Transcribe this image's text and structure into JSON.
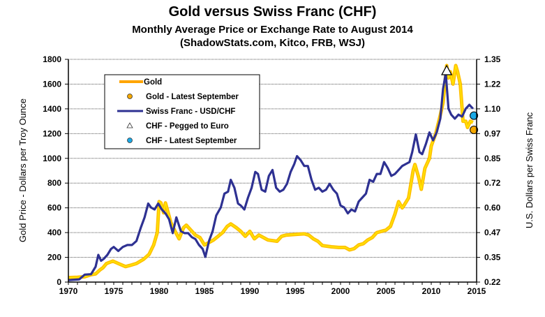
{
  "chart_data": {
    "type": "line",
    "title": "Gold versus Swiss Franc (CHF)",
    "subtitle": "Monthly Average Price or Exchange Rate to August 2014",
    "source": "(ShadowStats.com, Kitco, FRB, WSJ)",
    "xlabel": "",
    "ylabel_left": "Gold Price - Dollars per Troy Ounce",
    "ylabel_right": "U.S. Dollars per Swiss Franc",
    "xlim": [
      1970,
      2015
    ],
    "ylim_left": [
      0,
      1800
    ],
    "ylim_right": [
      0.2222,
      1.35
    ],
    "x_ticks": [
      "1970",
      "1975",
      "1980",
      "1985",
      "1990",
      "1995",
      "2000",
      "2005",
      "2010",
      "2015"
    ],
    "y_ticks_left": [
      "0",
      "200",
      "400",
      "600",
      "800",
      "1000",
      "1200",
      "1400",
      "1600",
      "1800"
    ],
    "y_ticks_right": [
      "0.22",
      "0.35",
      "0.47",
      "0.60",
      "0.72",
      "0.85",
      "0.97",
      "1.10",
      "1.22",
      "1.35"
    ],
    "grid": true,
    "legend": {
      "placement": "top-left",
      "entries": [
        {
          "label": "Gold",
          "kind": "line",
          "color": "#FFA500"
        },
        {
          "label": "Gold - Latest September",
          "kind": "marker",
          "color": "#F5A800"
        },
        {
          "label": "Swiss Franc - USD/CHF",
          "kind": "line",
          "color": "#2E3192"
        },
        {
          "label": "CHF - Pegged to Euro",
          "kind": "triangle",
          "color": "#FFFFFF"
        },
        {
          "label": "CHF - Latest September",
          "kind": "marker",
          "color": "#1BA9E6"
        }
      ]
    },
    "series": [
      {
        "name": "Gold",
        "axis": "left",
        "color": "#FFA500",
        "x": [
          1970,
          1971,
          1971.8,
          1972.5,
          1973,
          1973.5,
          1973.8,
          1974.2,
          1974.9,
          1975.5,
          1976.3,
          1976.8,
          1977.5,
          1978.3,
          1978.9,
          1979.4,
          1979.8,
          1980.0,
          1980.2,
          1980.5,
          1980.7,
          1981.0,
          1981.3,
          1981.7,
          1982.2,
          1982.7,
          1983.0,
          1983.5,
          1984.0,
          1984.5,
          1985.0,
          1985.5,
          1986.0,
          1986.5,
          1987.0,
          1987.5,
          1987.9,
          1988.5,
          1989.0,
          1989.5,
          1990.0,
          1990.5,
          1991.0,
          1992.0,
          1993.0,
          1993.5,
          1994.0,
          1995.0,
          1996.0,
          1996.5,
          1997.0,
          1997.5,
          1998.0,
          1999.0,
          1999.8,
          2000.5,
          2001.0,
          2001.5,
          2002.0,
          2002.5,
          2003.0,
          2003.5,
          2004.0,
          2004.5,
          2005.0,
          2005.5,
          2006.0,
          2006.4,
          2006.8,
          2007.0,
          2007.5,
          2008.0,
          2008.2,
          2008.6,
          2008.9,
          2009.3,
          2009.8,
          2010.0,
          2010.5,
          2011.0,
          2011.3,
          2011.7,
          2011.9,
          2012.1,
          2012.4,
          2012.7,
          2012.9,
          2013.2,
          2013.5,
          2013.8,
          2014.0,
          2014.3,
          2014.6
        ],
        "values": [
          36,
          39,
          43,
          60,
          66,
          100,
          115,
          150,
          170,
          150,
          125,
          135,
          150,
          185,
          225,
          300,
          400,
          650,
          640,
          560,
          640,
          560,
          480,
          420,
          350,
          440,
          460,
          420,
          380,
          360,
          300,
          320,
          340,
          370,
          400,
          450,
          470,
          440,
          410,
          370,
          410,
          350,
          380,
          340,
          330,
          370,
          380,
          385,
          390,
          380,
          350,
          330,
          295,
          285,
          280,
          280,
          260,
          270,
          300,
          310,
          340,
          360,
          400,
          410,
          420,
          450,
          550,
          650,
          600,
          620,
          680,
          900,
          950,
          850,
          750,
          920,
          1000,
          1100,
          1200,
          1350,
          1450,
          1750,
          1650,
          1700,
          1600,
          1750,
          1700,
          1600,
          1300,
          1300,
          1250,
          1300,
          1290
        ]
      },
      {
        "name": "Swiss Franc - USD/CHF",
        "axis": "right",
        "color": "#2E3192",
        "x": [
          1970,
          1971.2,
          1971.8,
          1972.5,
          1973,
          1973.3,
          1973.6,
          1973.9,
          1974.3,
          1974.7,
          1975.0,
          1975.5,
          1976.0,
          1976.5,
          1977.0,
          1977.5,
          1978.0,
          1978.4,
          1978.8,
          1979.1,
          1979.5,
          1979.9,
          1980.3,
          1980.7,
          1981.1,
          1981.5,
          1981.9,
          1982.4,
          1982.8,
          1983.2,
          1983.6,
          1984.0,
          1984.4,
          1984.8,
          1985.1,
          1985.5,
          1985.9,
          1986.3,
          1986.8,
          1987.2,
          1987.6,
          1987.9,
          1988.3,
          1988.7,
          1989.0,
          1989.4,
          1989.8,
          1990.2,
          1990.6,
          1990.9,
          1991.3,
          1991.7,
          1992.1,
          1992.5,
          1992.9,
          1993.3,
          1993.7,
          1994.1,
          1994.5,
          1994.9,
          1995.2,
          1995.6,
          1996.0,
          1996.4,
          1996.8,
          1997.2,
          1997.6,
          1998.0,
          1998.4,
          1998.8,
          1999.2,
          1999.6,
          2000.0,
          2000.4,
          2000.8,
          2001.2,
          2001.6,
          2002.0,
          2002.4,
          2002.8,
          2003.2,
          2003.6,
          2004.0,
          2004.4,
          2004.8,
          2005.2,
          2005.6,
          2006.0,
          2006.4,
          2006.8,
          2007.2,
          2007.6,
          2007.9,
          2008.3,
          2008.7,
          2009.0,
          2009.4,
          2009.8,
          2010.2,
          2010.6,
          2011.0,
          2011.3,
          2011.6,
          2011.9,
          2012.2,
          2012.6,
          2013.0,
          2013.4,
          2013.8,
          2014.2,
          2014.6
        ],
        "values": [
          0.232,
          0.236,
          0.26,
          0.262,
          0.3,
          0.36,
          0.33,
          0.34,
          0.36,
          0.39,
          0.4,
          0.38,
          0.4,
          0.41,
          0.41,
          0.43,
          0.5,
          0.55,
          0.62,
          0.6,
          0.59,
          0.62,
          0.59,
          0.57,
          0.54,
          0.47,
          0.55,
          0.48,
          0.47,
          0.47,
          0.45,
          0.44,
          0.41,
          0.39,
          0.35,
          0.43,
          0.48,
          0.56,
          0.6,
          0.67,
          0.68,
          0.74,
          0.7,
          0.62,
          0.61,
          0.59,
          0.65,
          0.7,
          0.78,
          0.77,
          0.69,
          0.68,
          0.76,
          0.79,
          0.7,
          0.68,
          0.69,
          0.72,
          0.78,
          0.82,
          0.86,
          0.84,
          0.81,
          0.81,
          0.74,
          0.69,
          0.7,
          0.68,
          0.69,
          0.72,
          0.69,
          0.67,
          0.61,
          0.6,
          0.57,
          0.59,
          0.58,
          0.63,
          0.65,
          0.67,
          0.74,
          0.73,
          0.77,
          0.77,
          0.83,
          0.8,
          0.76,
          0.77,
          0.79,
          0.81,
          0.82,
          0.83,
          0.88,
          0.97,
          0.88,
          0.87,
          0.92,
          0.98,
          0.94,
          0.98,
          1.05,
          1.2,
          1.28,
          1.1,
          1.07,
          1.05,
          1.07,
          1.06,
          1.1,
          1.12,
          1.1
        ]
      }
    ],
    "points": [
      {
        "name": "Gold - Latest September",
        "axis": "left",
        "x": 2014.7,
        "value": 1230,
        "color": "#F5A800",
        "shape": "circle"
      },
      {
        "name": "CHF - Pegged to Euro",
        "axis": "right",
        "x": 2011.7,
        "value": 1.29,
        "color": "#FFFFFF",
        "shape": "triangle"
      },
      {
        "name": "CHF - Latest September",
        "axis": "right",
        "x": 2014.7,
        "value": 1.065,
        "color": "#1BA9E6",
        "shape": "circle"
      }
    ]
  }
}
